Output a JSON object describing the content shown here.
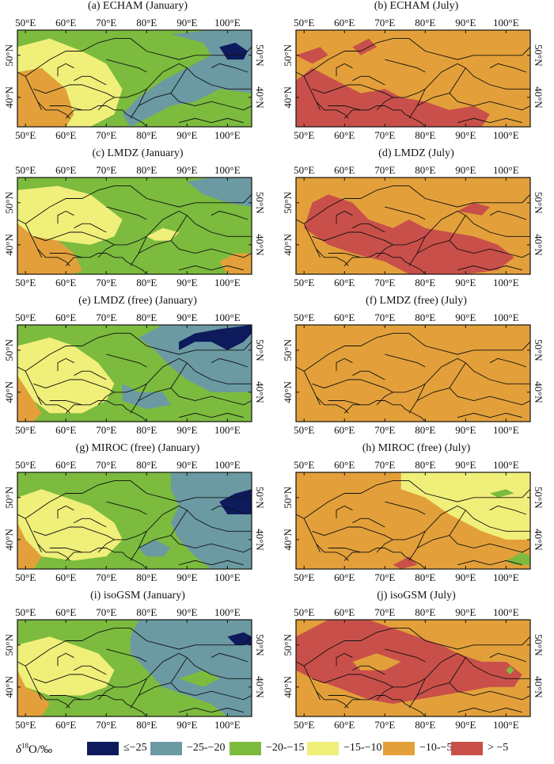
{
  "figure": {
    "panels": [
      {
        "id": "a",
        "title": "(a) ECHAM (January)",
        "palette": "jan1"
      },
      {
        "id": "b",
        "title": "(b) ECHAM (July)",
        "palette": "jul1"
      },
      {
        "id": "c",
        "title": "(c) LMDZ (January)",
        "palette": "jan2"
      },
      {
        "id": "d",
        "title": "(d) LMDZ (July)",
        "palette": "jul2"
      },
      {
        "id": "e",
        "title": "(e) LMDZ (free) (January)",
        "palette": "jan3"
      },
      {
        "id": "f",
        "title": "(f) LMDZ (free) (July)",
        "palette": "jul3"
      },
      {
        "id": "g",
        "title": "(g) MIROC (free) (January)",
        "palette": "jan4"
      },
      {
        "id": "h",
        "title": "(h) MIROC (free) (July)",
        "palette": "jul4"
      },
      {
        "id": "i",
        "title": "(i) isoGSM (January)",
        "palette": "jan5"
      },
      {
        "id": "j",
        "title": "(j) isoGSM (July)",
        "palette": "jul5"
      }
    ],
    "lon_ticks": [
      "50°E",
      "60°E",
      "70°E",
      "80°E",
      "90°E",
      "100°E"
    ],
    "lat_ticks": [
      "50°N",
      "40°N"
    ],
    "extent": {
      "lon_min": 48,
      "lon_max": 106,
      "lat_min": 33,
      "lat_max": 56
    }
  },
  "legend": {
    "title_prefix": "δ",
    "title_sup": "18",
    "title_rest": "O/‰",
    "classes": [
      {
        "label": "≤−25",
        "color": "#0d1a5c"
      },
      {
        "label": "−25-−20",
        "color": "#6b9aa3"
      },
      {
        "label": "−20-−15",
        "color": "#7cbb3e"
      },
      {
        "label": "−15-−10",
        "color": "#f0ef7a"
      },
      {
        "label": "−10-−5",
        "color": "#e3a03a"
      },
      {
        "label": "> −5",
        "color": "#c9504a"
      }
    ]
  },
  "colors": {
    "border": "#111111",
    "frame": "#111111"
  }
}
